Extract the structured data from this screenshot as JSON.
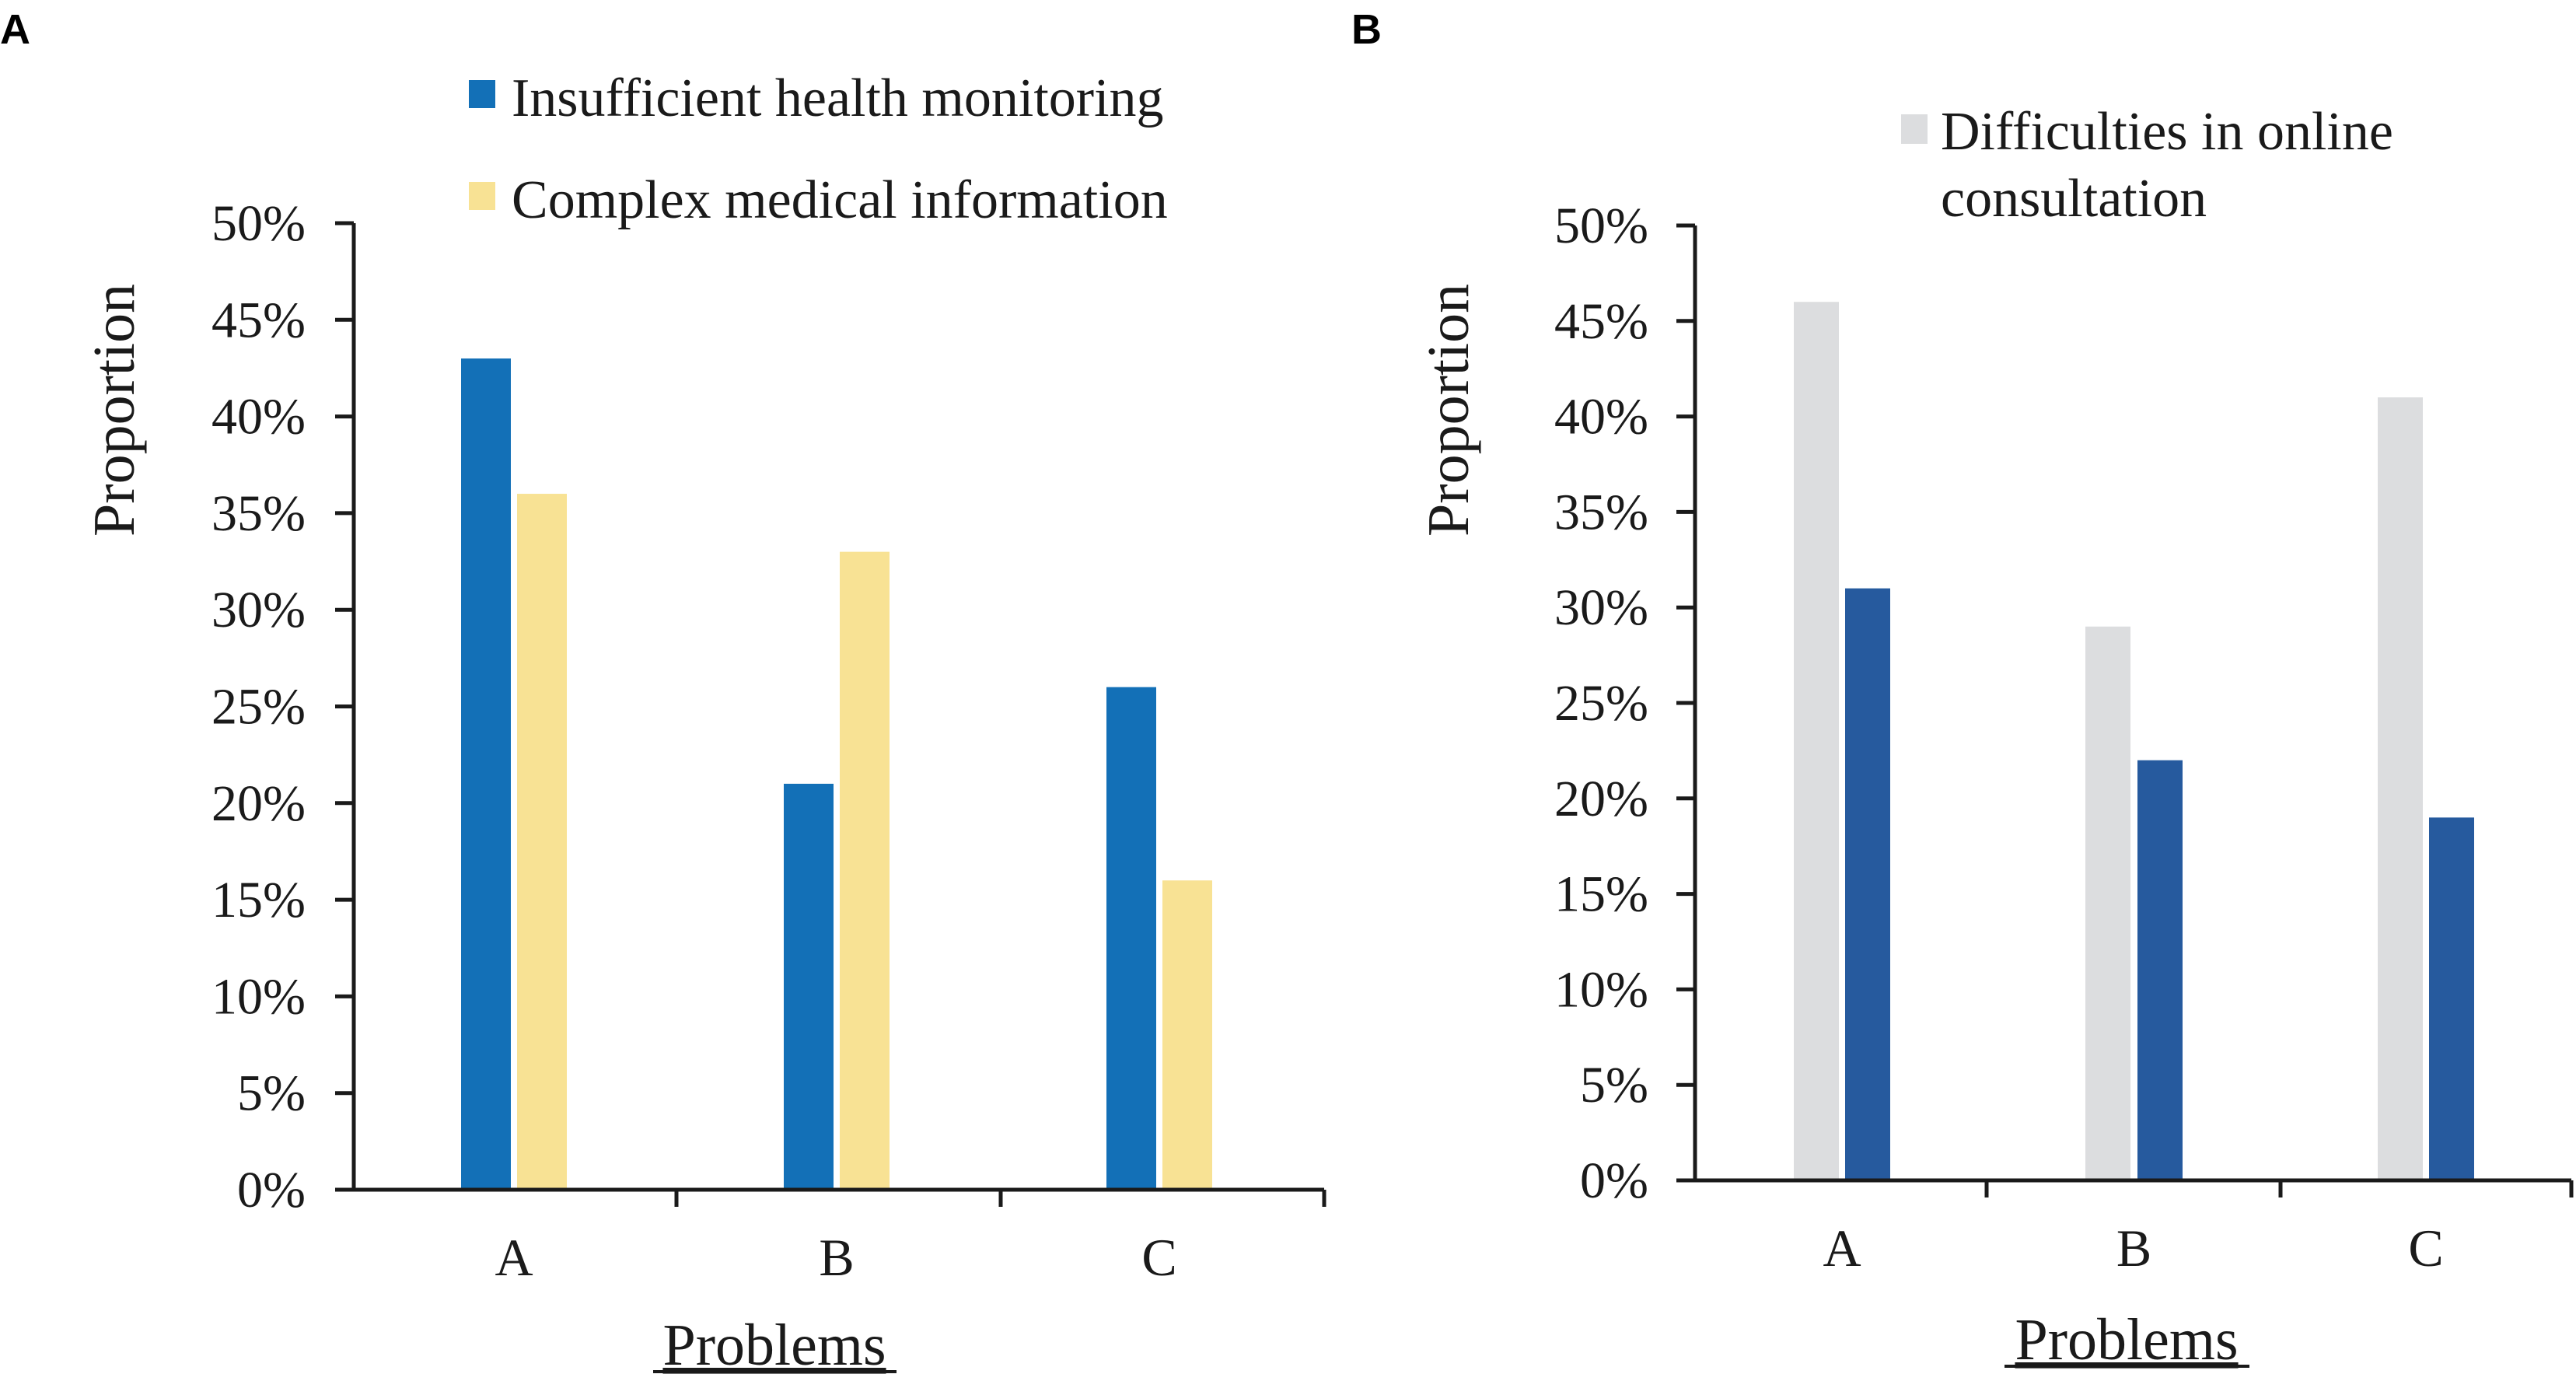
{
  "panels": {
    "a": {
      "letter": "A"
    },
    "b": {
      "letter": "B"
    }
  },
  "chart_data": [
    {
      "type": "bar",
      "panel": "A",
      "categories": [
        "A",
        "B",
        "C"
      ],
      "series": [
        {
          "name": "Insufficient health monitoring",
          "color": "#1370b7",
          "values": [
            43,
            21,
            26
          ]
        },
        {
          "name": "Complex medical information",
          "color": "#f8e294",
          "values": [
            36,
            33,
            16
          ]
        }
      ],
      "yticks": [
        "0%",
        "5%",
        "10%",
        "15%",
        "20%",
        "25%",
        "30%",
        "35%",
        "40%",
        "45%",
        "50%"
      ],
      "ylim": [
        0,
        50
      ],
      "xlabel": "Problems",
      "ylabel": "Proportion",
      "legend": [
        "Insufficient health monitoring",
        "Complex medical information"
      ],
      "legend_position": "top"
    },
    {
      "type": "bar",
      "panel": "B",
      "categories": [
        "A",
        "B",
        "C"
      ],
      "series": [
        {
          "name": "Difficulties in online consultation",
          "color": "#dcdddf",
          "values": [
            46,
            29,
            41
          ]
        },
        {
          "name": "",
          "color": "#265a9e",
          "values": [
            31,
            22,
            19
          ]
        }
      ],
      "yticks": [
        "0%",
        "5%",
        "10%",
        "15%",
        "20%",
        "25%",
        "30%",
        "35%",
        "40%",
        "45%",
        "50%"
      ],
      "ylim": [
        0,
        50
      ],
      "xlabel": "Problems",
      "ylabel": "Proportion",
      "legend": [
        "Difficulties in online",
        "consultation"
      ],
      "legend_position": "top"
    }
  ]
}
